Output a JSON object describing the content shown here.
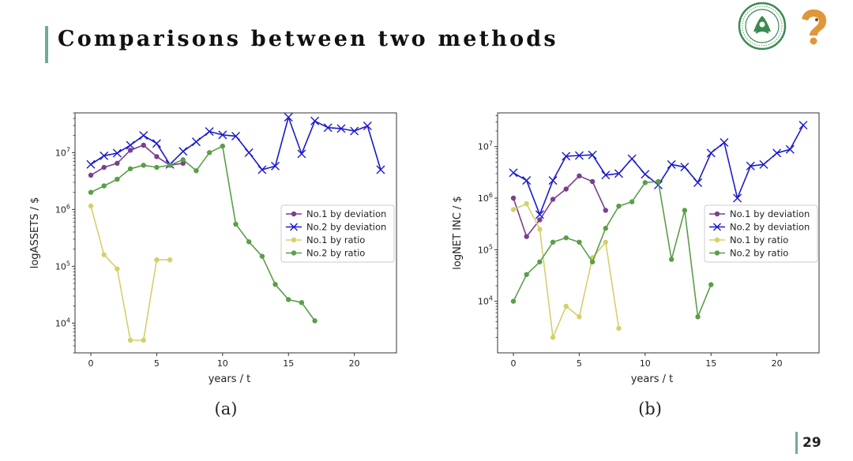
{
  "slide": {
    "title": "Comparisons between two methods",
    "page_number": "29"
  },
  "captions": [
    "(a)",
    "(b)"
  ],
  "colors": {
    "accent": "#6fae8f",
    "no1_deviation": "#7b3f8c",
    "no2_deviation": "#1a1acc",
    "no1_ratio": "#d4d06a",
    "no2_ratio": "#5a9e48"
  },
  "chart_data": [
    {
      "type": "line",
      "yscale": "log",
      "xlabel": "years / t",
      "ylabel": "logASSETS / $",
      "xlim": [
        -1.2,
        23.2
      ],
      "ylim": [
        3000,
        50000000
      ],
      "xticks": [
        0,
        5,
        10,
        15,
        20
      ],
      "yticks": [
        10000,
        100000,
        1000000,
        10000000
      ],
      "ytick_labels": [
        [
          "10",
          "4"
        ],
        [
          "10",
          "5"
        ],
        [
          "10",
          "6"
        ],
        [
          "10",
          "7"
        ]
      ],
      "grid": false,
      "legend": "right",
      "series": [
        {
          "name": "No.1 by deviation",
          "color": "#7b3f8c",
          "marker": "circle",
          "x": [
            0,
            1,
            2,
            3,
            4,
            5,
            6,
            7
          ],
          "y": [
            4000000,
            5500000,
            6500000,
            11000000,
            13500000,
            8500000,
            6000000,
            6500000
          ]
        },
        {
          "name": "No.2 by deviation",
          "color": "#1a1acc",
          "marker": "x",
          "x": [
            0,
            1,
            2,
            3,
            4,
            5,
            6,
            7,
            8,
            9,
            10,
            11,
            12,
            13,
            14,
            15,
            16,
            17,
            18,
            19,
            20,
            21,
            22
          ],
          "y": [
            6200000,
            8800000,
            9800000,
            13500000,
            20000000,
            14500000,
            6200000,
            10500000,
            15500000,
            23500000,
            20500000,
            19500000,
            10000000,
            5000000,
            5800000,
            42000000,
            9500000,
            36000000,
            27500000,
            26500000,
            24000000,
            29500000,
            5000000
          ]
        },
        {
          "name": "No.1 by ratio",
          "color": "#d4d06a",
          "marker": "circle",
          "x": [
            0,
            1,
            2,
            3,
            4,
            5,
            6
          ],
          "y": [
            1150000,
            160000,
            90000,
            5000,
            5000,
            130000,
            130000
          ]
        },
        {
          "name": "No.2 by ratio",
          "color": "#5a9e48",
          "marker": "circle",
          "x": [
            0,
            1,
            2,
            3,
            4,
            5,
            6,
            7,
            8,
            9,
            10,
            11,
            12,
            13,
            14,
            15,
            16,
            17
          ],
          "y": [
            2000000,
            2600000,
            3400000,
            5200000,
            6000000,
            5500000,
            6000000,
            7500000,
            4800000,
            10000000,
            13000000,
            550000,
            270000,
            150000,
            48000,
            26000,
            23000,
            11000
          ]
        }
      ]
    },
    {
      "type": "line",
      "yscale": "log",
      "xlabel": "years / t",
      "ylabel": "logNET INC / $",
      "xlim": [
        -1.2,
        23.2
      ],
      "ylim": [
        1000,
        45000000
      ],
      "xticks": [
        0,
        5,
        10,
        15,
        20
      ],
      "yticks": [
        10000,
        100000,
        1000000,
        10000000
      ],
      "ytick_labels": [
        [
          "10",
          "4"
        ],
        [
          "10",
          "5"
        ],
        [
          "10",
          "6"
        ],
        [
          "10",
          "7"
        ]
      ],
      "grid": false,
      "legend": "right",
      "series": [
        {
          "name": "No.1 by deviation",
          "color": "#7b3f8c",
          "marker": "circle",
          "x": [
            0,
            1,
            2,
            3,
            4,
            5,
            6,
            7
          ],
          "y": [
            1000000,
            180000,
            380000,
            950000,
            1500000,
            2700000,
            2100000,
            580000
          ]
        },
        {
          "name": "No.2 by deviation",
          "color": "#1a1acc",
          "marker": "x",
          "x": [
            0,
            1,
            2,
            3,
            4,
            5,
            6,
            7,
            8,
            9,
            10,
            11,
            12,
            13,
            14,
            15,
            16,
            17,
            18,
            19,
            20,
            21,
            22
          ],
          "y": [
            3100000,
            2200000,
            480000,
            2200000,
            6500000,
            6700000,
            6900000,
            2800000,
            3000000,
            5800000,
            2900000,
            1800000,
            4500000,
            4000000,
            2000000,
            7500000,
            12000000,
            1000000,
            4200000,
            4500000,
            7500000,
            8800000,
            26000000
          ]
        },
        {
          "name": "No.1 by ratio",
          "color": "#d4d06a",
          "marker": "circle",
          "x": [
            0,
            1,
            2,
            3,
            4,
            5,
            6,
            7,
            8
          ],
          "y": [
            600000,
            780000,
            250000,
            2000,
            8000,
            5000,
            70000,
            140000,
            3000
          ]
        },
        {
          "name": "No.2 by ratio",
          "color": "#5a9e48",
          "marker": "circle",
          "x": [
            0,
            1,
            2,
            3,
            4,
            5,
            6,
            7,
            8,
            9,
            10,
            11,
            12,
            13,
            14,
            15
          ],
          "y": [
            10000,
            33000,
            58000,
            140000,
            170000,
            140000,
            58000,
            260000,
            700000,
            850000,
            2000000,
            2100000,
            65000,
            580000,
            5000,
            21000
          ]
        }
      ]
    }
  ]
}
